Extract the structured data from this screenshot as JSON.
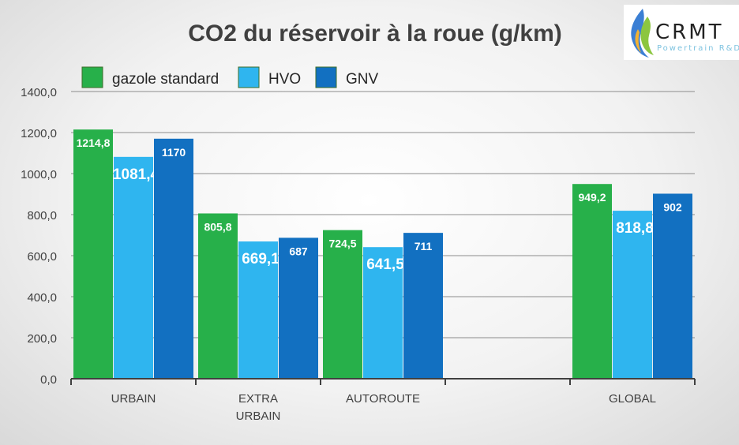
{
  "logo": {
    "name": "CRMT",
    "tagline": "Powertrain R&D"
  },
  "chart_data": {
    "type": "bar",
    "title": "CO2 du réservoir à la roue (g/km)",
    "xlabel": "",
    "ylabel": "",
    "ylim": [
      0,
      1400
    ],
    "yticks": [
      "0,0",
      "200,0",
      "400,0",
      "600,0",
      "800,0",
      "1000,0",
      "1200,0",
      "1400,0"
    ],
    "grid": true,
    "legend_position": "top-left",
    "categories": [
      {
        "lines": [
          "URBAIN"
        ]
      },
      {
        "lines": [
          "EXTRA",
          "URBAIN"
        ]
      },
      {
        "lines": [
          "AUTOROUTE"
        ]
      },
      {
        "lines": [
          ""
        ]
      },
      {
        "lines": [
          "GLOBAL"
        ]
      }
    ],
    "series": [
      {
        "name": "gazole standard",
        "color": "#27b04a",
        "values": [
          1214.8,
          805.8,
          724.5,
          null,
          949.2
        ],
        "labels": [
          "1214,8",
          "805,8",
          "724,5",
          "",
          "949,2"
        ]
      },
      {
        "name": "HVO",
        "color": "#2fb5ef",
        "values": [
          1081.4,
          669.1,
          641.5,
          null,
          818.8
        ],
        "labels": [
          "1081,4",
          "669,1",
          "641,5",
          "",
          "818,8"
        ]
      },
      {
        "name": "GNV",
        "color": "#1270c1",
        "values": [
          1170,
          687,
          711,
          null,
          902
        ],
        "labels": [
          "1170",
          "687",
          "711",
          "",
          "902"
        ]
      }
    ]
  }
}
